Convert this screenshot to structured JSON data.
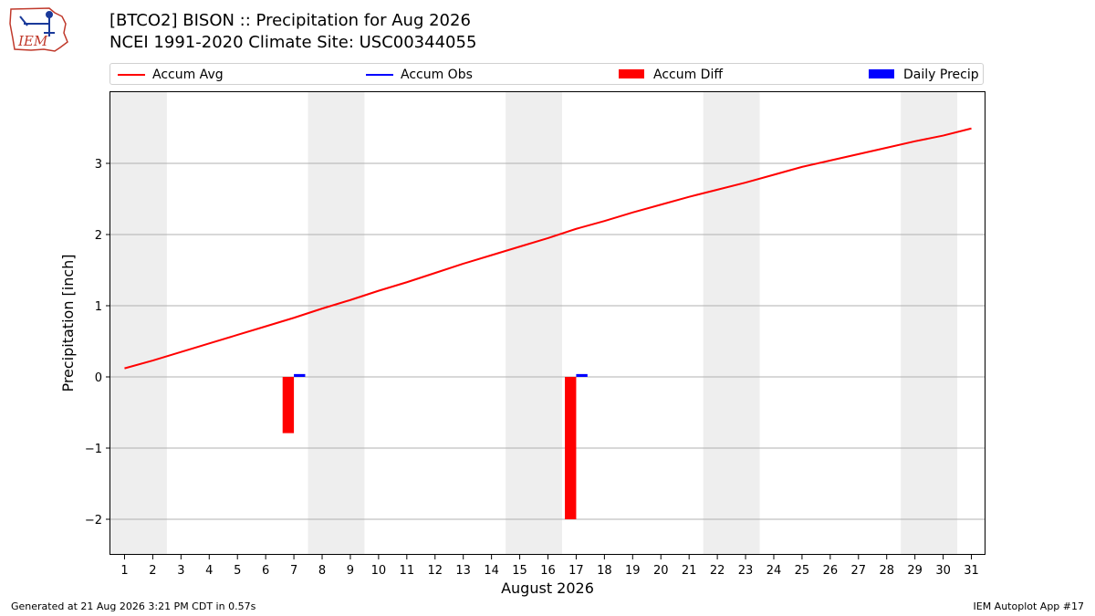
{
  "logo": {
    "text": "IEM"
  },
  "header": {
    "title_line1": "[BTCO2] BISON :: Precipitation for Aug 2026",
    "title_line2": "NCEI 1991-2020 Climate Site: USC00344055"
  },
  "legend": [
    {
      "label": "Accum Avg",
      "kind": "line",
      "color": "#ff0000"
    },
    {
      "label": "Accum Obs",
      "kind": "line",
      "color": "#0000ff"
    },
    {
      "label": "Accum Diff",
      "kind": "patch",
      "color": "#ff0000"
    },
    {
      "label": "Daily Precip",
      "kind": "patch",
      "color": "#0000ff"
    }
  ],
  "footer": {
    "left": "Generated at 21 Aug 2026 3:21 PM CDT in 0.57s",
    "right": "IEM Autoplot App #17"
  },
  "chart_data": {
    "type": "bar",
    "xlabel": "August 2026",
    "ylabel": "Precipitation [inch]",
    "xlim": [
      0.5,
      31.5
    ],
    "ylim": [
      -2.5,
      4.0
    ],
    "yticks": [
      -2,
      -1,
      0,
      1,
      2,
      3
    ],
    "ytick_labels": [
      "−2",
      "−1",
      "0",
      "1",
      "2",
      "3"
    ],
    "grid": "horizontal",
    "weekend_shading": [
      [
        0.5,
        2.5
      ],
      [
        7.5,
        9.5
      ],
      [
        14.5,
        16.5
      ],
      [
        21.5,
        23.5
      ],
      [
        28.5,
        30.5
      ]
    ],
    "shading_color": "#eeeeee",
    "x": [
      1,
      2,
      3,
      4,
      5,
      6,
      7,
      8,
      9,
      10,
      11,
      12,
      13,
      14,
      15,
      16,
      17,
      18,
      19,
      20,
      21,
      22,
      23,
      24,
      25,
      26,
      27,
      28,
      29,
      30,
      31
    ],
    "series": [
      {
        "name": "Accum Avg",
        "type": "line",
        "color": "#ff0000",
        "values": [
          0.12,
          0.23,
          0.35,
          0.47,
          0.59,
          0.71,
          0.83,
          0.96,
          1.08,
          1.21,
          1.33,
          1.46,
          1.59,
          1.71,
          1.83,
          1.95,
          2.08,
          2.19,
          2.31,
          2.42,
          2.53,
          2.63,
          2.73,
          2.84,
          2.95,
          3.04,
          3.13,
          3.22,
          3.31,
          3.39,
          3.49
        ]
      },
      {
        "name": "Accum Diff",
        "type": "bar",
        "color": "#ff0000",
        "points": [
          {
            "x": 7,
            "value": -0.79
          },
          {
            "x": 17,
            "value": -2.0
          }
        ]
      },
      {
        "name": "Daily Precip",
        "type": "bar",
        "color": "#0000ff",
        "points": [
          {
            "x": 7,
            "value": 0.04
          },
          {
            "x": 17,
            "value": 0.04
          }
        ]
      }
    ]
  }
}
